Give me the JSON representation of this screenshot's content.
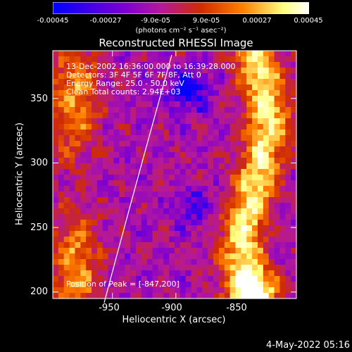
{
  "colorbar": {
    "ticks": [
      "-0.00045",
      "-0.00027",
      "-9.0e-05",
      "9.0e-05",
      "0.00027",
      "0.00045"
    ],
    "unit": "(photons cm⁻² s⁻¹ asec⁻²)",
    "range": [
      -0.00045,
      0.00045
    ]
  },
  "chart_data": {
    "type": "heatmap",
    "title": "Reconstructed RHESSI Image",
    "xlabel": "Heliocentric X (arcsec)",
    "ylabel": "Heliocentric Y (arcsec)",
    "xlim": [
      -997,
      -805
    ],
    "ylim": [
      195,
      387
    ],
    "xticks": [
      -950,
      -900,
      -850
    ],
    "yticks": [
      200,
      250,
      300,
      350
    ],
    "xtick_labels": [
      "-950",
      "-900",
      "-850"
    ],
    "ytick_labels": [
      "200",
      "250",
      "300",
      "350"
    ],
    "colormap": [
      "#0000ff",
      "#7d00d2",
      "#b4189c",
      "#d02c00",
      "#ff7f00",
      "#ffff80",
      "#ffffff"
    ],
    "annotations": [
      "13-Dec-2002 16:36:00.000 to 16:39:28.000",
      "Detectors: 3F 4F 5F 6F 7F 8F, Att 0",
      "Energy Range: 25.0 - 50.0 keV",
      "Clean    Total counts: 2.94E+03"
    ],
    "peak_label": "Position of Peak = [-847,200]",
    "limb_line": "white limb curve",
    "values_note": ""
  },
  "footer": {
    "date": "4-May-2022 05:16"
  }
}
